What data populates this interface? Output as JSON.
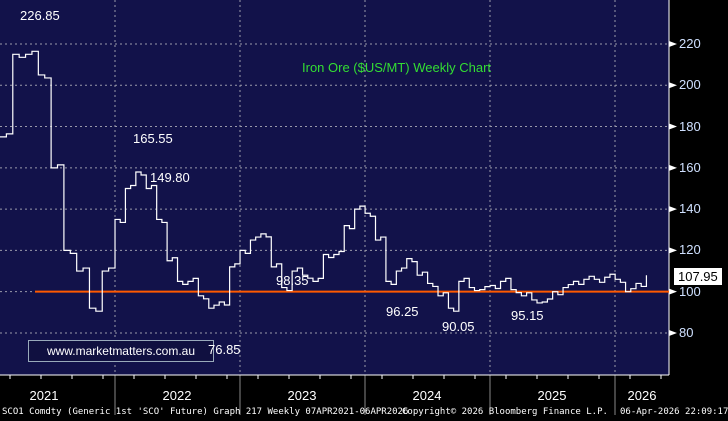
{
  "chart_data": {
    "type": "line",
    "title": "Iron Ore ($US/MT) Weekly Chart",
    "watermark": "www.marketmatters.com.au",
    "x_labels": [
      "2021",
      "2022",
      "2023",
      "2024",
      "2025",
      "2026"
    ],
    "y_ticks": [
      80,
      100,
      120,
      140,
      160,
      180,
      200,
      220
    ],
    "ylim": [
      61,
      241
    ],
    "reference_line": {
      "value": 100,
      "color": "#ff5a00"
    },
    "last_value": "107.95",
    "annotations": [
      {
        "label": "226.85",
        "value": 226.85
      },
      {
        "label": "165.55",
        "value": 165.55
      },
      {
        "label": "149.80",
        "value": 149.8
      },
      {
        "label": "98.35",
        "value": 98.35
      },
      {
        "label": "76.85",
        "value": 76.85
      },
      {
        "label": "96.25",
        "value": 96.25
      },
      {
        "label": "90.05",
        "value": 90.05
      },
      {
        "label": "95.15",
        "value": 95.15
      }
    ],
    "series": [
      {
        "name": "SCO1 Comdty",
        "frequency": "monthly approx (Apr 2021 - Apr 2026)",
        "values": [
          175,
          215,
          215,
          205,
          160,
          120,
          110,
          92,
          110,
          135,
          150,
          158,
          150,
          135,
          115,
          105,
          105,
          98,
          92,
          95,
          112,
          120,
          125,
          128,
          112,
          102,
          110,
          108,
          105,
          118,
          118,
          132,
          140,
          138,
          125,
          105,
          110,
          116,
          108,
          104,
          98,
          92,
          105,
          102,
          101,
          103,
          105,
          101,
          98,
          96,
          95,
          100,
          102,
          105,
          106,
          106,
          107,
          106,
          100,
          104,
          107.95
        ]
      }
    ]
  },
  "footer": {
    "left": "SCO1 Comdty (Generic 1st 'SCO' Future) Graph 217 Weekly 07APR2021-06APR2026",
    "center": "Copyright© 2026 Bloomberg Finance L.P.",
    "right": "06-Apr-2026 22:09:17"
  },
  "colors": {
    "plot_bg": "#12124a",
    "line": "#ffffff",
    "title": "#33dd33",
    "ref": "#ff5a00"
  }
}
